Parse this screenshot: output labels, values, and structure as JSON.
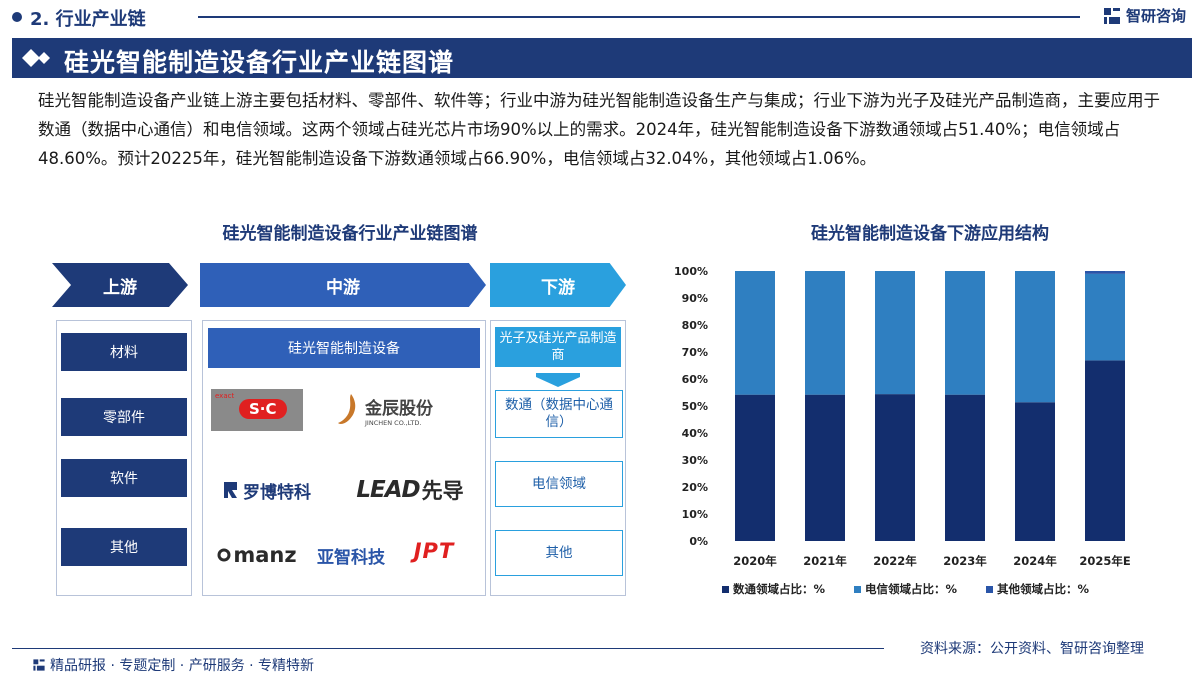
{
  "header": {
    "section": "2. 行业产业链",
    "brand": "智研咨询",
    "title": "硅光智能制造设备行业产业链图谱"
  },
  "paragraph": "硅光智能制造设备产业链上游主要包括材料、零部件、软件等；行业中游为硅光智能制造设备生产与集成；行业下游为光子及硅光产品制造商，主要应用于数通（数据中心通信）和电信领域。这两个领域占硅光芯片市场90%以上的需求。2024年，硅光智能制造设备下游数通领域占51.40%；电信领域占48.60%。预计20225年，硅光智能制造设备下游数通领域占66.90%，电信领域占32.04%，其他领域占1.06%。",
  "chain": {
    "title": "硅光智能制造设备行业产业链图谱",
    "upstream_label": "上游",
    "midstream_label": "中游",
    "downstream_label": "下游",
    "upstream_items": [
      "材料",
      "零部件",
      "软件",
      "其他"
    ],
    "midstream_head": "硅光智能制造设备",
    "logos": {
      "exact_small": "exact",
      "sc": "S·C",
      "jinchen_cn": "金辰股份",
      "jinchen_en": "JINCHEN CO.,LTD.",
      "robotech": "罗博特科",
      "lead_en": "LEAD",
      "lead_cn": "先导",
      "manz": "manz",
      "yazhi": "亚智科技",
      "jpt": "JPT"
    },
    "downstream_head": "光子及硅光产品制造商",
    "downstream_items": [
      "数通（数据中心通信）",
      "电信领域",
      "其他"
    ]
  },
  "chart_data": {
    "type": "bar",
    "stacked": true,
    "title": "硅光智能制造设备下游应用结构",
    "categories": [
      "2020年",
      "2021年",
      "2022年",
      "2023年",
      "2024年",
      "2025年E"
    ],
    "series": [
      {
        "name": "数通领域占比：%",
        "color": "#132e6e",
        "values": [
          54.2,
          54.2,
          54.4,
          54.2,
          51.4,
          66.9
        ]
      },
      {
        "name": "电信领域占比：%",
        "color": "#2f7fc1",
        "values": [
          45.8,
          45.8,
          45.6,
          45.8,
          48.6,
          32.04
        ]
      },
      {
        "name": "其他领域占比：%",
        "color": "#2a55a8",
        "values": [
          0,
          0,
          0,
          0,
          0,
          1.06
        ]
      }
    ],
    "yticks": [
      "0%",
      "10%",
      "20%",
      "30%",
      "40%",
      "50%",
      "60%",
      "70%",
      "80%",
      "90%",
      "100%"
    ],
    "ylim": [
      0,
      100
    ],
    "legend_position": "bottom"
  },
  "footer": {
    "source": "资料来源：公开资料、智研咨询整理",
    "tagline": "精品研报 · 专题定制 · 产研服务 · 专精特新"
  },
  "colors": {
    "navy": "#1e3a78",
    "mid_blue": "#2f60b8",
    "light_blue": "#2aa0de"
  }
}
